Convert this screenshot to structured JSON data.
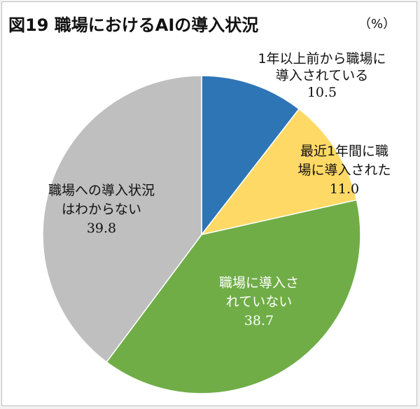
{
  "chart_data": {
    "type": "pie",
    "title": "図19 職場におけるAIの導入状況",
    "unit": "（%）",
    "slices": [
      {
        "label_lines": [
          "1年以上前から職場に",
          "導入されている"
        ],
        "value": 10.5,
        "value_label": "10.5",
        "color": "#2e75b6",
        "text_color": "#111111"
      },
      {
        "label_lines": [
          "最近1年間に職",
          "場に導入された"
        ],
        "value": 11.0,
        "value_label": "11.0",
        "color": "#ffd966",
        "text_color": "#111111"
      },
      {
        "label_lines": [
          "職場に導入さ",
          "れていない"
        ],
        "value": 38.7,
        "value_label": "38.7",
        "color": "#70ad47",
        "text_color": "#ffffff"
      },
      {
        "label_lines": [
          "職場への導入状況",
          "はわからない"
        ],
        "value": 39.8,
        "value_label": "39.8",
        "color": "#bfbfbf",
        "text_color": "#111111"
      }
    ]
  }
}
